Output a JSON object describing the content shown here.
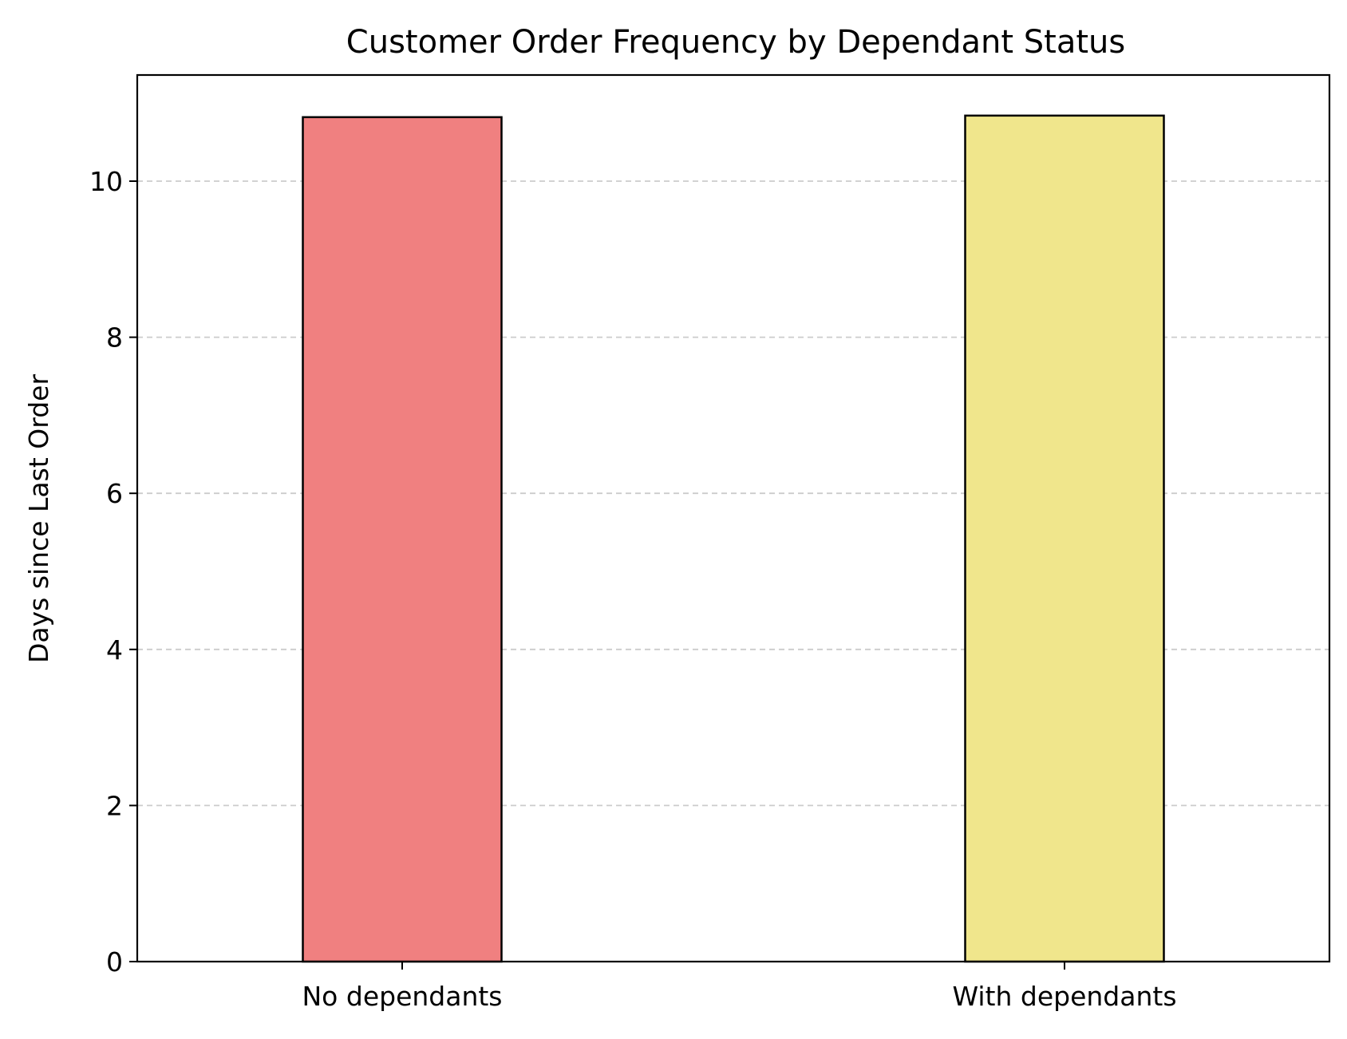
{
  "chart_data": {
    "type": "bar",
    "title": "Customer Order Frequency by Dependant Status",
    "xlabel": "",
    "ylabel": "Days since Last Order",
    "categories": [
      "No dependants",
      "With dependants"
    ],
    "values": [
      10.82,
      10.84
    ],
    "colors": [
      "#F08080",
      "#F0E68C"
    ],
    "edge_color": "#000000",
    "ylim": [
      0,
      11.36
    ],
    "yticks": [
      0,
      2,
      4,
      6,
      8,
      10
    ],
    "grid": {
      "axis": "y",
      "style": "dashed",
      "color": "#cccccc"
    },
    "legend": "none"
  }
}
